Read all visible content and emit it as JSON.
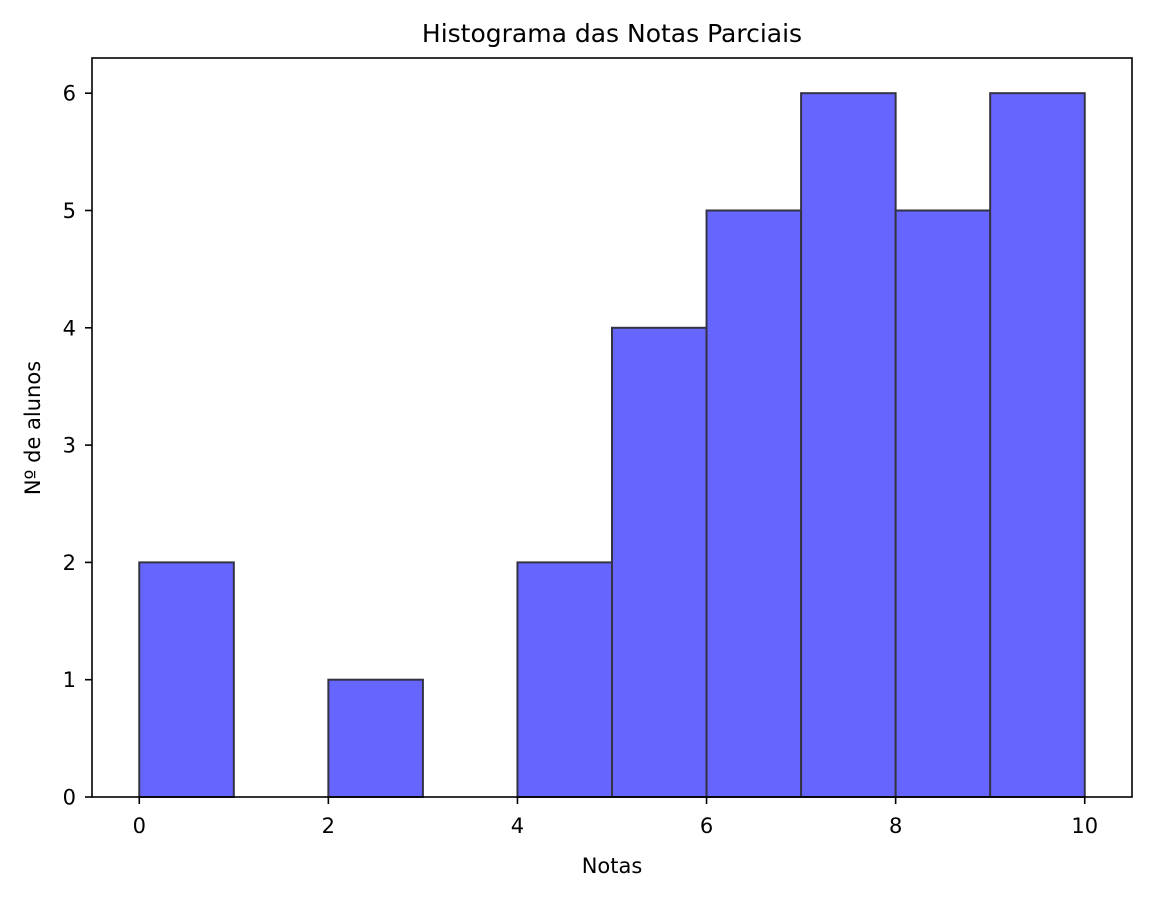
{
  "chart_data": {
    "type": "bar",
    "title": "Histograma das Notas Parciais",
    "xlabel": "Notas",
    "ylabel": "Nº de alunos",
    "bins": [
      {
        "start": 0,
        "end": 1,
        "value": 2
      },
      {
        "start": 1,
        "end": 2,
        "value": 0
      },
      {
        "start": 2,
        "end": 3,
        "value": 1
      },
      {
        "start": 3,
        "end": 4,
        "value": 0
      },
      {
        "start": 4,
        "end": 5,
        "value": 2
      },
      {
        "start": 5,
        "end": 6,
        "value": 4
      },
      {
        "start": 6,
        "end": 7,
        "value": 5
      },
      {
        "start": 7,
        "end": 8,
        "value": 6
      },
      {
        "start": 8,
        "end": 9,
        "value": 5
      },
      {
        "start": 9,
        "end": 10,
        "value": 6
      }
    ],
    "xlim": [
      -0.5,
      10.5
    ],
    "ylim": [
      0,
      6.3
    ],
    "xticks": [
      "0",
      "2",
      "4",
      "6",
      "8",
      "10"
    ],
    "yticks": [
      "0",
      "1",
      "2",
      "3",
      "4",
      "5",
      "6"
    ],
    "grid": false,
    "bar_color": "#6666ff",
    "edge_color": "#333344"
  }
}
